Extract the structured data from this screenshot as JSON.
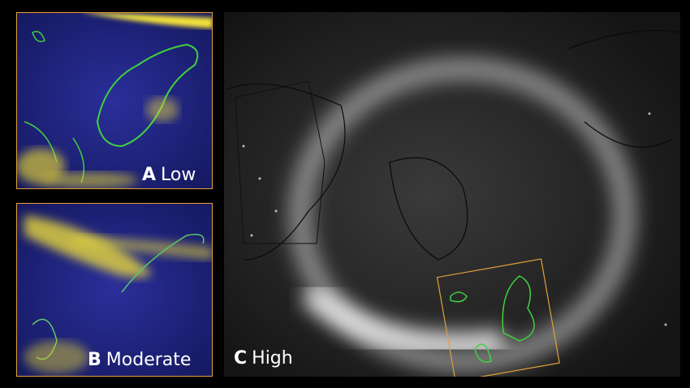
{
  "panels": [
    {
      "letter": "A",
      "label": "Low"
    },
    {
      "letter": "B",
      "label": "Moderate"
    },
    {
      "letter": "C",
      "label": "High"
    }
  ]
}
